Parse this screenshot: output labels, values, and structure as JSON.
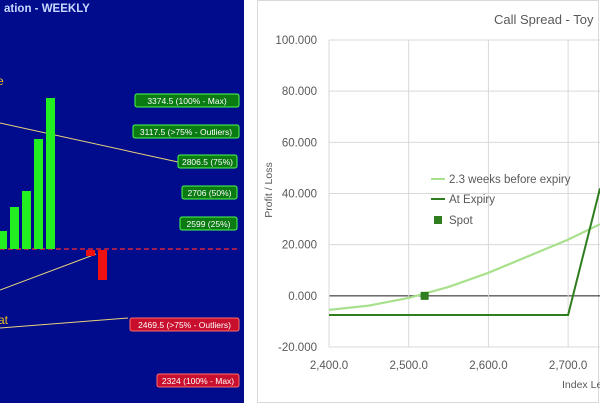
{
  "left_panel": {
    "title": "ation - WEEKLY",
    "label_top": "e",
    "label_bottom": "at",
    "colors": {
      "background": "#000c8c",
      "up": "#22ee22",
      "down": "#ee1111",
      "baseline": "#ff2a2a",
      "callout_line": "#e8d27a",
      "title": "#c8d8ff",
      "label": "#f0c020"
    },
    "up_bars": [
      18,
      42,
      58,
      110,
      151
    ],
    "down_bars": [
      6,
      30
    ],
    "tags": [
      {
        "text": "3374.5 (100% - Max)",
        "kind": "green"
      },
      {
        "text": "3117.5 (>75% - Outliers)",
        "kind": "green"
      },
      {
        "text": "2806.5 (75%)",
        "kind": "green"
      },
      {
        "text": "2706 (50%)",
        "kind": "green"
      },
      {
        "text": "2599 (25%)",
        "kind": "green"
      },
      {
        "text": "2469.5 (>75% - Outliers)",
        "kind": "red"
      },
      {
        "text": "2324 (100% - Max)",
        "kind": "red"
      }
    ]
  },
  "chart_data": {
    "type": "line",
    "title": "Call Spread - Toy",
    "xlabel": "Index Le",
    "ylabel": "Profit / Loss",
    "xlim": [
      2400,
      2740
    ],
    "ylim": [
      -20,
      100
    ],
    "x_ticks": [
      "2,400.0",
      "2,500.0",
      "2,600.0",
      "2,700.0"
    ],
    "y_ticks": [
      "100.000",
      "80.000",
      "60.000",
      "40.000",
      "20.000",
      "0.000",
      "-20.000"
    ],
    "series": [
      {
        "name": "2.3 weeks before expiry",
        "color": "#a8e08c",
        "x": [
          2400,
          2450,
          2500,
          2550,
          2600,
          2650,
          2700,
          2740
        ],
        "y": [
          -5.5,
          -3.8,
          -0.8,
          3.5,
          9,
          15.5,
          22,
          28
        ]
      },
      {
        "name": "At Expiry",
        "color": "#2e7d1e",
        "x": [
          2400,
          2700,
          2740
        ],
        "y": [
          -7.5,
          -7.5,
          42
        ]
      },
      {
        "name": "Spot",
        "color": "#2e7d1e",
        "type": "scatter",
        "x": [
          2520
        ],
        "y": [
          0
        ]
      }
    ],
    "gridlines": true,
    "legend": "inside-left"
  }
}
